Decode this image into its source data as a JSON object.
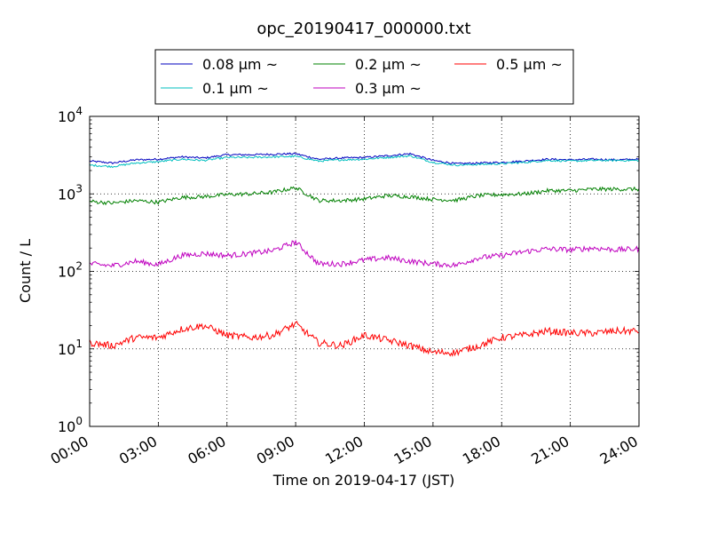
{
  "chart_data": {
    "type": "line",
    "title": "opc_20190417_000000.txt",
    "xlabel": "Time on 2019-04-17 (JST)",
    "ylabel": "Count / L",
    "x_unit": "hours",
    "xlim": [
      0,
      24
    ],
    "ylim": [
      1,
      10000
    ],
    "yscale": "log",
    "grid": true,
    "legend_position": "top",
    "x_ticks": [
      {
        "value": 0,
        "label": "00:00"
      },
      {
        "value": 3,
        "label": "03:00"
      },
      {
        "value": 6,
        "label": "06:00"
      },
      {
        "value": 9,
        "label": "09:00"
      },
      {
        "value": 12,
        "label": "12:00"
      },
      {
        "value": 15,
        "label": "15:00"
      },
      {
        "value": 18,
        "label": "18:00"
      },
      {
        "value": 21,
        "label": "21:00"
      },
      {
        "value": 24,
        "label": "24:00"
      }
    ],
    "y_ticks": [
      {
        "value": 1,
        "base": "10",
        "exp": "0"
      },
      {
        "value": 10,
        "base": "10",
        "exp": "1"
      },
      {
        "value": 100,
        "base": "10",
        "exp": "2"
      },
      {
        "value": 1000,
        "base": "10",
        "exp": "3"
      },
      {
        "value": 10000,
        "base": "10",
        "exp": "4"
      }
    ],
    "x": [
      0,
      1,
      2,
      3,
      4,
      5,
      6,
      7,
      8,
      9,
      10,
      11,
      12,
      13,
      14,
      15,
      16,
      17,
      18,
      19,
      20,
      21,
      22,
      23,
      24
    ],
    "series": [
      {
        "name": "0.08 μm ~",
        "color": "#0000bf",
        "values": [
          2650,
          2500,
          2750,
          2800,
          3000,
          2900,
          3200,
          3200,
          3250,
          3300,
          2800,
          2900,
          2950,
          3100,
          3300,
          2700,
          2450,
          2500,
          2550,
          2650,
          2800,
          2750,
          2800,
          2750,
          2800
        ]
      },
      {
        "name": "0.1 μm ~",
        "color": "#00bfbf",
        "values": [
          2350,
          2250,
          2500,
          2600,
          2800,
          2700,
          2950,
          2950,
          3000,
          3050,
          2650,
          2750,
          2800,
          2950,
          3100,
          2550,
          2350,
          2400,
          2450,
          2550,
          2700,
          2650,
          2700,
          2700,
          2700
        ]
      },
      {
        "name": "0.2 μm ~",
        "color": "#008000",
        "values": [
          800,
          760,
          820,
          780,
          900,
          920,
          980,
          1000,
          1050,
          1200,
          820,
          820,
          860,
          950,
          920,
          850,
          830,
          950,
          980,
          1000,
          1100,
          1100,
          1150,
          1150,
          1150
        ]
      },
      {
        "name": "0.3 μm ~",
        "color": "#bf00bf",
        "values": [
          125,
          118,
          135,
          122,
          160,
          170,
          160,
          170,
          185,
          240,
          125,
          125,
          140,
          150,
          135,
          125,
          120,
          150,
          160,
          180,
          195,
          190,
          200,
          190,
          195
        ]
      },
      {
        "name": "0.5 μm ~",
        "color": "#ff0000",
        "values": [
          12,
          11,
          14,
          14,
          18,
          20,
          15,
          14,
          15,
          21,
          12,
          11,
          15,
          13,
          11,
          9,
          9,
          11,
          14,
          15,
          17,
          16,
          16,
          17,
          17
        ]
      }
    ]
  }
}
